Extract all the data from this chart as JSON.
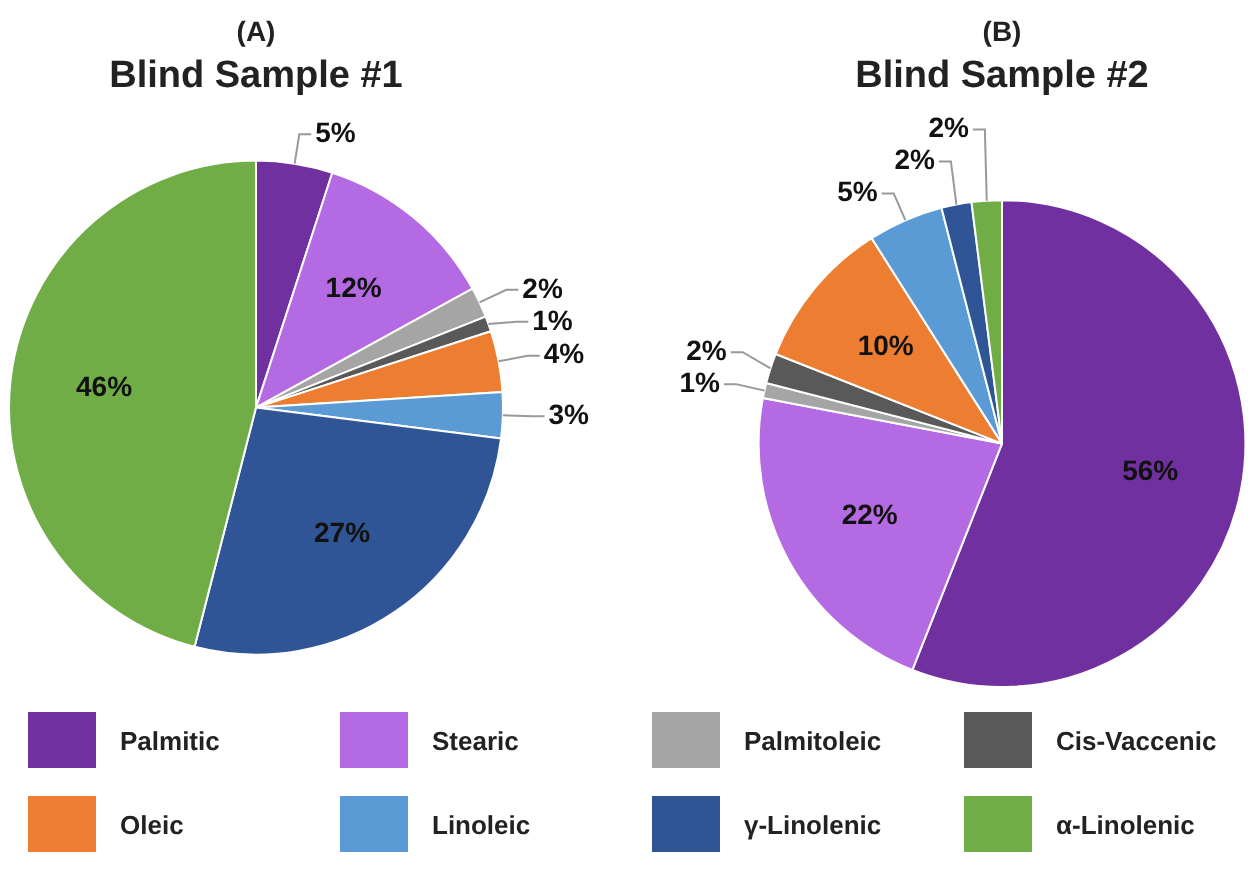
{
  "chart_data": [
    {
      "type": "pie",
      "title": "(A)",
      "subtitle": "Blind Sample #1",
      "categories": [
        "Palmitic",
        "Stearic",
        "Palmitoleic",
        "Cis-Vaccenic",
        "Oleic",
        "Linoleic",
        "γ-Linolenic",
        "α-Linolenic"
      ],
      "values": [
        5,
        12,
        2,
        1,
        4,
        3,
        27,
        46
      ],
      "value_labels": [
        "5%",
        "12%",
        "2%",
        "1%",
        "4%",
        "3%",
        "27%",
        "46%"
      ],
      "colors": [
        "#7030a0",
        "#b36ae2",
        "#a5a5a5",
        "#595959",
        "#ed7d31",
        "#5b9bd5",
        "#2f5597",
        "#70ad47"
      ],
      "legend": "bottom"
    },
    {
      "type": "pie",
      "title": "(B)",
      "subtitle": "Blind Sample #2",
      "categories": [
        null,
        null,
        null,
        null,
        null,
        null,
        null,
        null
      ],
      "values": [
        56,
        22,
        1,
        2,
        10,
        5,
        2,
        2
      ],
      "value_labels": [
        "56%",
        "22%",
        "1%",
        "2%",
        "10%",
        "5%",
        "2%",
        "2%"
      ],
      "colors": [
        "#7030a0",
        "#b36ae2",
        "#a5a5a5",
        "#595959",
        "#ed7d31",
        "#5b9bd5",
        "#2f5597",
        "#70ad47"
      ]
    }
  ]
}
